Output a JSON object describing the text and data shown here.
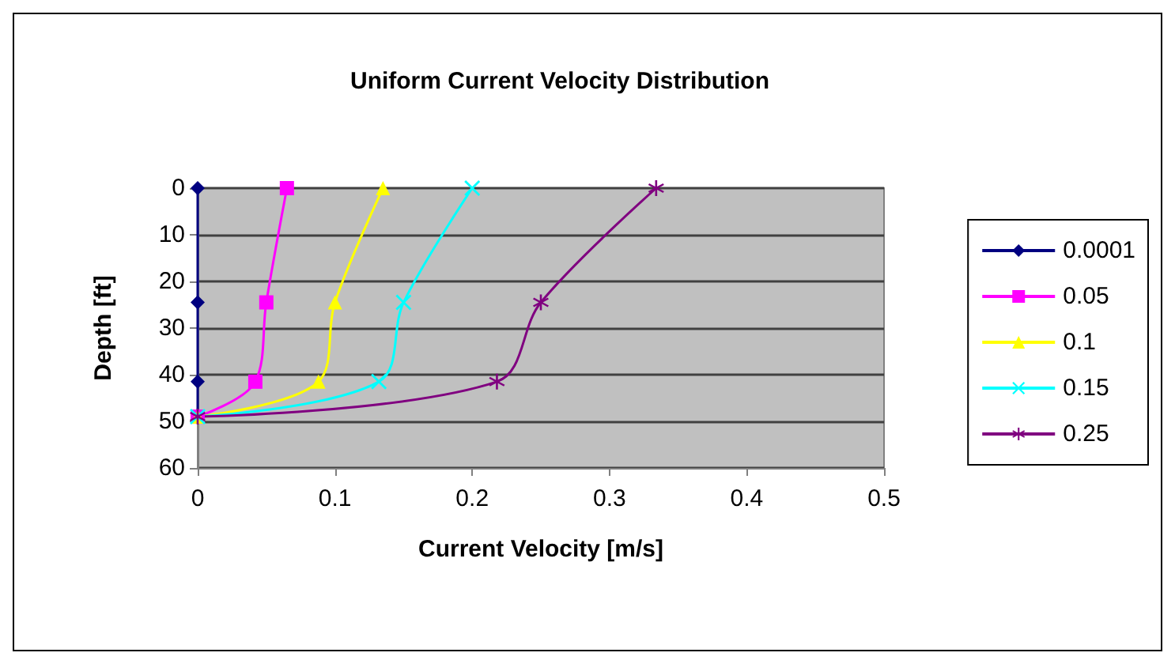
{
  "chart_data": {
    "type": "line",
    "title": "Uniform Current Velocity Distribution",
    "xlabel": "Current Velocity [m/s]",
    "ylabel": "Depth [ft]",
    "xlim": [
      0,
      0.5
    ],
    "xticks": [
      0,
      0.1,
      0.2,
      0.3,
      0.4,
      0.5
    ],
    "ylim": [
      60,
      0
    ],
    "yticks": [
      0,
      10,
      20,
      30,
      40,
      50,
      60
    ],
    "grid": "y",
    "legend": "right",
    "line_style": "solid",
    "series": [
      {
        "name": "0.0001",
        "color": "#000080",
        "marker": "diamond",
        "x": [
          0,
          0,
          0,
          0
        ],
        "values": [
          0,
          24.5,
          41.5,
          49
        ]
      },
      {
        "name": "0.05",
        "color": "#ff00ff",
        "marker": "square",
        "x": [
          0.065,
          0.05,
          0.042,
          0
        ],
        "values": [
          0,
          24.5,
          41.5,
          49
        ]
      },
      {
        "name": "0.1",
        "color": "#ffff00",
        "marker": "triangle",
        "x": [
          0.135,
          0.1,
          0.088,
          0
        ],
        "values": [
          0,
          24.5,
          41.5,
          49
        ]
      },
      {
        "name": "0.15",
        "color": "#00ffff",
        "marker": "cross",
        "x": [
          0.2,
          0.15,
          0.132,
          0
        ],
        "values": [
          0,
          24.5,
          41.5,
          49
        ]
      },
      {
        "name": "0.25",
        "color": "#800080",
        "marker": "star",
        "x": [
          0.334,
          0.25,
          0.218,
          0
        ],
        "values": [
          0,
          24.5,
          41.5,
          49
        ]
      }
    ]
  }
}
